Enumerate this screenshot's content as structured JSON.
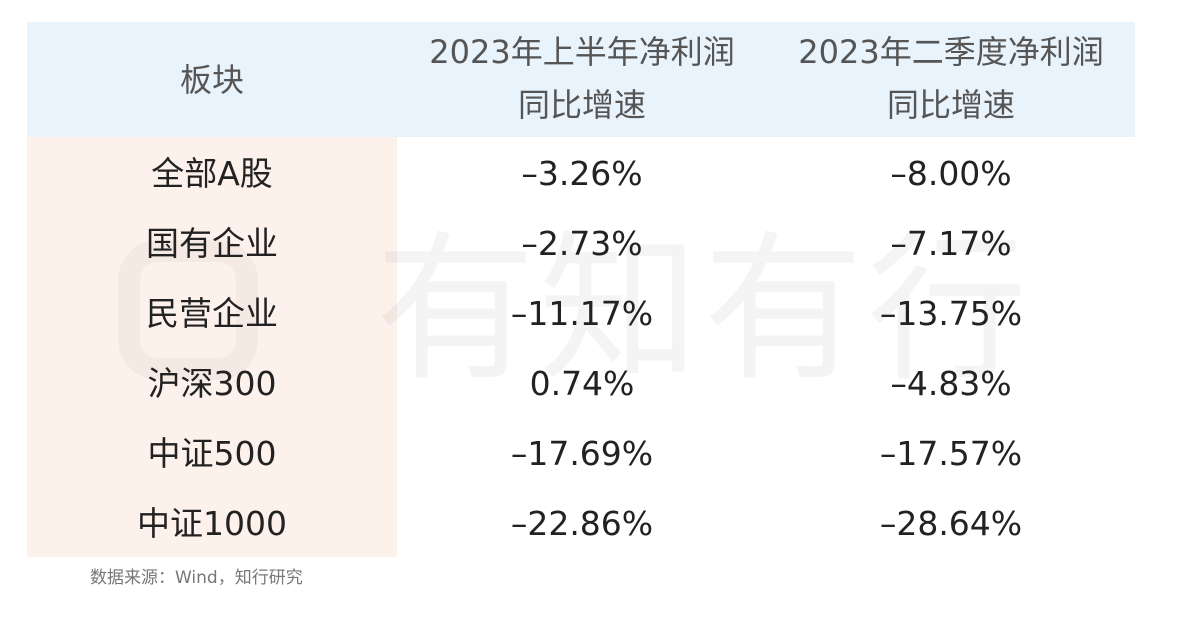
{
  "table": {
    "header": [
      [
        "板块"
      ],
      [
        "2023年上半年净利润",
        "同比增速"
      ],
      [
        "2023年二季度净利润",
        "同比增速"
      ]
    ],
    "rows": [
      [
        "全部A股",
        "–3.26%",
        "–8.00%"
      ],
      [
        "国有企业",
        "–2.73%",
        "–7.17%"
      ],
      [
        "民营企业",
        "–11.17%",
        "–13.75%"
      ],
      [
        "沪深300",
        "0.74%",
        "–4.83%"
      ],
      [
        "中证500",
        "–17.69%",
        "–17.57%"
      ],
      [
        "中证1000",
        "–22.86%",
        "–28.64%"
      ]
    ]
  },
  "watermark": "有知有行",
  "source": "数据来源：Wind，知行研究"
}
